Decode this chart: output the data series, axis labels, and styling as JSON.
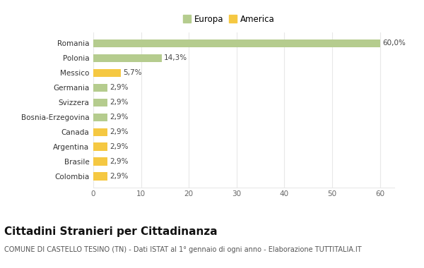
{
  "countries": [
    "Colombia",
    "Brasile",
    "Argentina",
    "Canada",
    "Bosnia-Erzegovina",
    "Svizzera",
    "Germania",
    "Messico",
    "Polonia",
    "Romania"
  ],
  "values": [
    2.9,
    2.9,
    2.9,
    2.9,
    2.9,
    2.9,
    2.9,
    5.7,
    14.3,
    60.0
  ],
  "labels": [
    "2,9%",
    "2,9%",
    "2,9%",
    "2,9%",
    "2,9%",
    "2,9%",
    "2,9%",
    "5,7%",
    "14,3%",
    "60,0%"
  ],
  "colors": [
    "#f5c842",
    "#f5c842",
    "#f5c842",
    "#f5c842",
    "#b5cc8e",
    "#b5cc8e",
    "#b5cc8e",
    "#f5c842",
    "#b5cc8e",
    "#b5cc8e"
  ],
  "europa_color": "#b5cc8e",
  "america_color": "#f5c842",
  "bg_color": "#ffffff",
  "grid_color": "#e8e8e8",
  "xlim": [
    0,
    63
  ],
  "xticks": [
    0,
    10,
    20,
    30,
    40,
    50,
    60
  ],
  "title": "Cittadini Stranieri per Cittadinanza",
  "subtitle": "COMUNE DI CASTELLO TESINO (TN) - Dati ISTAT al 1° gennaio di ogni anno - Elaborazione TUTTITALIA.IT",
  "legend_europa": "Europa",
  "legend_america": "America",
  "title_fontsize": 11,
  "subtitle_fontsize": 7,
  "label_fontsize": 7.5,
  "tick_fontsize": 7.5,
  "legend_fontsize": 8.5,
  "bar_height": 0.55
}
